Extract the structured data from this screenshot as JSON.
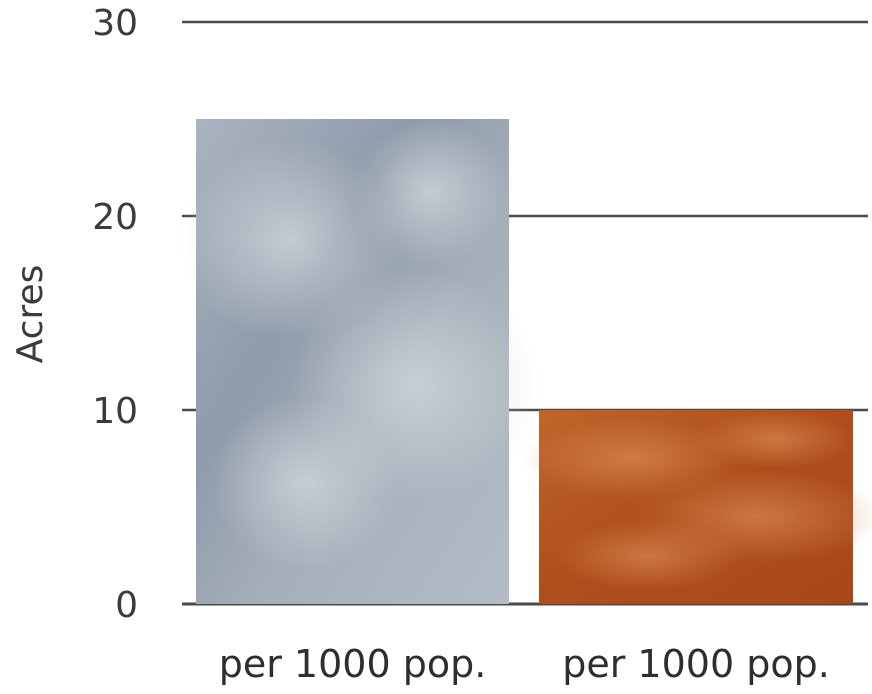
{
  "chart_data": {
    "type": "bar",
    "title": "",
    "xlabel": "",
    "ylabel": "Acres",
    "ylim": [
      0,
      30
    ],
    "yticks": [
      0,
      10,
      20,
      30
    ],
    "grid": true,
    "categories": [
      "per 1000 pop.",
      "per 1000 pop."
    ],
    "values": [
      25,
      10
    ],
    "colors": [
      "#9aa6b2",
      "#b8541f"
    ]
  }
}
